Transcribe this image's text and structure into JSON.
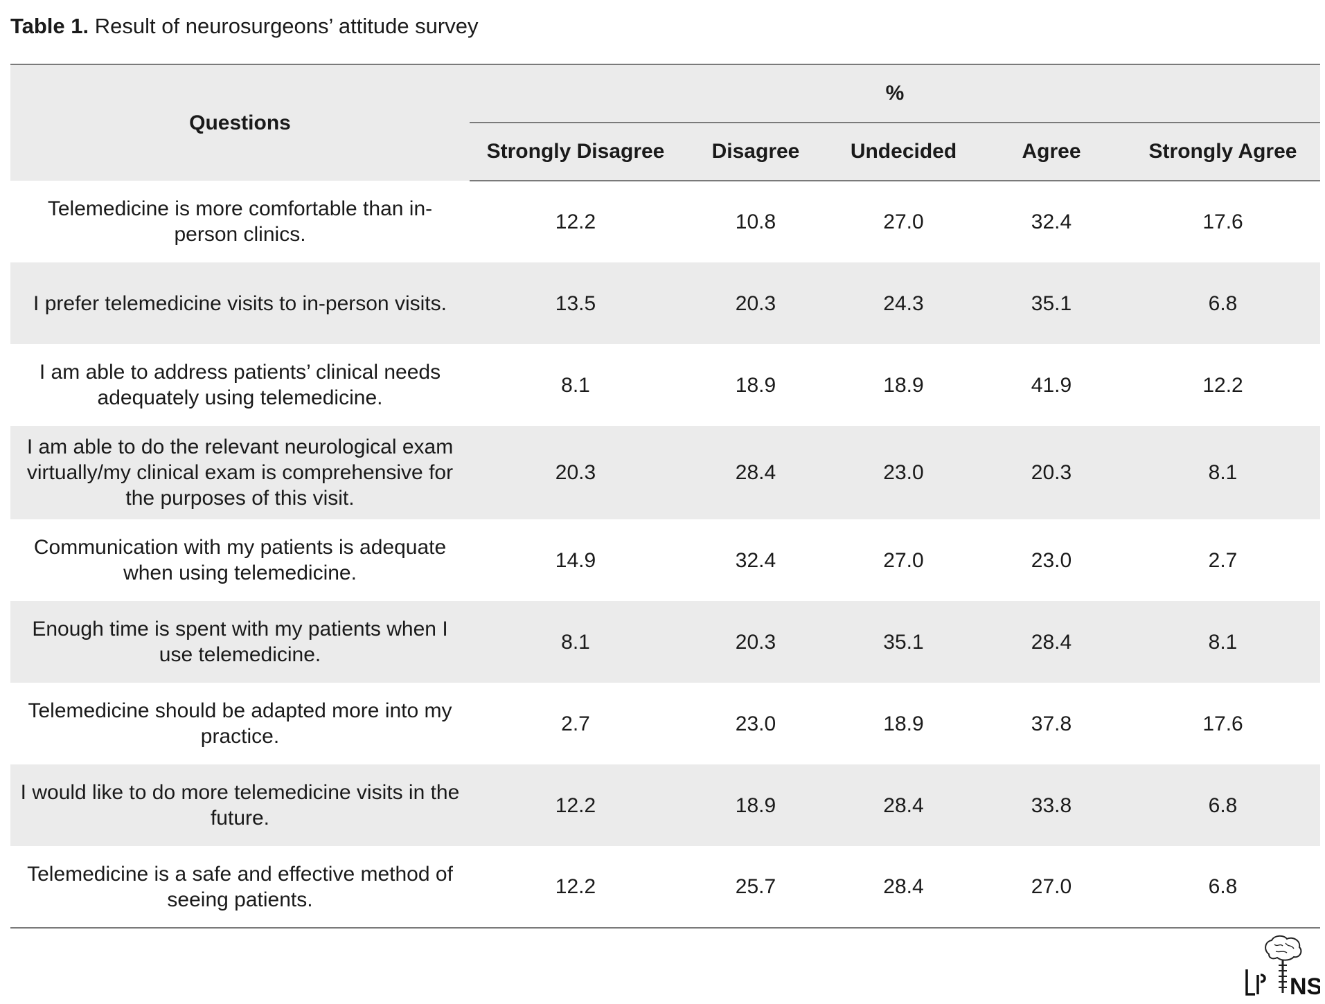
{
  "caption": {
    "label": "Table 1.",
    "text": "Result of neurosurgeons’ attitude survey"
  },
  "table": {
    "questions_header": "Questions",
    "group_header": "%",
    "columns": [
      "Strongly Disagree",
      "Disagree",
      "Undecided",
      "Agree",
      "Strongly Agree"
    ],
    "rows": [
      {
        "question": "Telemedicine is more comfortable than in-person clinics.",
        "values": [
          "12.2",
          "10.8",
          "27.0",
          "32.4",
          "17.6"
        ]
      },
      {
        "question": "I prefer telemedicine visits to in-person visits.",
        "values": [
          "13.5",
          "20.3",
          "24.3",
          "35.1",
          "6.8"
        ]
      },
      {
        "question": "I am able to address patients’ clinical needs adequately using telemedicine.",
        "values": [
          "8.1",
          "18.9",
          "18.9",
          "41.9",
          "12.2"
        ]
      },
      {
        "question": "I am able to do the relevant neurological exam virtually/my clinical exam is comprehensive for the purposes of this visit.",
        "values": [
          "20.3",
          "28.4",
          "23.0",
          "20.3",
          "8.1"
        ]
      },
      {
        "question": "Communication with my patients is adequate when using telemedicine.",
        "values": [
          "14.9",
          "32.4",
          "27.0",
          "23.0",
          "2.7"
        ]
      },
      {
        "question": "Enough time is spent with my patients when I use telemedicine.",
        "values": [
          "8.1",
          "20.3",
          "35.1",
          "28.4",
          "8.1"
        ]
      },
      {
        "question": "Telemedicine should be adapted more into my practice.",
        "values": [
          "2.7",
          "23.0",
          "18.9",
          "37.8",
          "17.6"
        ]
      },
      {
        "question": "I would like to do more telemedicine visits in the future.",
        "values": [
          "12.2",
          "18.9",
          "28.4",
          "33.8",
          "6.8"
        ]
      },
      {
        "question": "Telemedicine is a safe and effective method of seeing patients.",
        "values": [
          "12.2",
          "25.7",
          "28.4",
          "27.0",
          "6.8"
        ]
      }
    ]
  },
  "logo": {
    "text": "NS",
    "icon": "brain-spine-logo-icon"
  },
  "colors": {
    "row_shade": "#ebebeb",
    "rule": "#7a7a7a",
    "text": "#1a1a1a"
  }
}
